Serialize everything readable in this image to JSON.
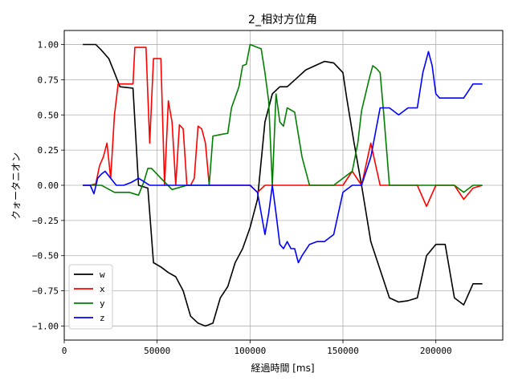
{
  "chart_data": {
    "type": "line",
    "title": "2_相対方位角",
    "xlabel": "経過時間 [ms]",
    "ylabel": "クォータニオン",
    "xlim": [
      0,
      236000
    ],
    "ylim": [
      -1.1,
      1.1
    ],
    "xticks": [
      0,
      50000,
      100000,
      150000,
      200000
    ],
    "xtick_labels": [
      "0",
      "50000",
      "100000",
      "150000",
      "200000"
    ],
    "yticks": [
      1.0,
      0.75,
      0.5,
      0.25,
      0.0,
      -0.25,
      -0.5,
      -0.75,
      -1.0
    ],
    "ytick_labels": [
      "1.00",
      "0.75",
      "0.50",
      "0.25",
      "0.00",
      "−0.25",
      "−0.50",
      "−0.75",
      "−1.00"
    ],
    "grid": true,
    "legend": {
      "position": "lower-left"
    },
    "series": [
      {
        "name": "w",
        "color": "#000000",
        "x": [
          10000,
          17000,
          20000,
          24000,
          27000,
          30000,
          37000,
          40000,
          45000,
          48000,
          52000,
          56000,
          60000,
          64000,
          68000,
          72000,
          76000,
          80000,
          84000,
          88000,
          92000,
          96000,
          100000,
          104000,
          108000,
          112000,
          116000,
          120000,
          125000,
          130000,
          135000,
          140000,
          145000,
          150000,
          152000,
          156000,
          160000,
          165000,
          170000,
          175000,
          180000,
          185000,
          190000,
          195000,
          200000,
          205000,
          210000,
          215000,
          220000,
          225000
        ],
        "y": [
          1.0,
          1.0,
          0.96,
          0.9,
          0.8,
          0.7,
          0.69,
          0.0,
          -0.02,
          -0.55,
          -0.58,
          -0.62,
          -0.65,
          -0.75,
          -0.93,
          -0.98,
          -1.0,
          -0.98,
          -0.8,
          -0.72,
          -0.55,
          -0.45,
          -0.3,
          -0.1,
          0.45,
          0.65,
          0.7,
          0.7,
          0.76,
          0.82,
          0.85,
          0.88,
          0.87,
          0.8,
          0.62,
          0.3,
          0.0,
          -0.4,
          -0.6,
          -0.8,
          -0.83,
          -0.82,
          -0.8,
          -0.5,
          -0.42,
          -0.42,
          -0.8,
          -0.85,
          -0.7,
          -0.7
        ]
      },
      {
        "name": "x",
        "color": "#ff0000",
        "x": [
          10000,
          14000,
          17000,
          19000,
          21000,
          23000,
          25000,
          27000,
          29000,
          31000,
          35000,
          37000,
          38000,
          40000,
          42000,
          44000,
          46000,
          48000,
          50000,
          52000,
          54000,
          56000,
          58000,
          60000,
          62000,
          64000,
          66000,
          68000,
          70000,
          72000,
          74000,
          76000,
          78000,
          80000,
          90000,
          100000,
          104000,
          108000,
          112000,
          120000,
          130000,
          140000,
          150000,
          155000,
          160000,
          165000,
          170000,
          180000,
          190000,
          195000,
          200000,
          210000,
          215000,
          220000,
          225000
        ],
        "y": [
          0.0,
          0.0,
          0.01,
          0.14,
          0.2,
          0.3,
          0.05,
          0.5,
          0.72,
          0.72,
          0.72,
          0.72,
          0.98,
          0.98,
          0.98,
          0.98,
          0.3,
          0.9,
          0.9,
          0.9,
          0.0,
          0.6,
          0.45,
          0.0,
          0.43,
          0.4,
          0.0,
          0.0,
          0.05,
          0.42,
          0.4,
          0.3,
          0.0,
          0.0,
          0.0,
          0.0,
          -0.05,
          0.0,
          0.0,
          0.0,
          0.0,
          0.0,
          0.0,
          0.1,
          0.0,
          0.3,
          0.0,
          0.0,
          0.0,
          -0.15,
          0.0,
          0.0,
          -0.1,
          -0.02,
          0.0
        ]
      },
      {
        "name": "y",
        "color": "#008000",
        "x": [
          10000,
          20000,
          27000,
          35000,
          40000,
          43000,
          45000,
          47000,
          52000,
          58000,
          66000,
          70000,
          76000,
          78000,
          80000,
          84000,
          88000,
          90000,
          94000,
          96000,
          98000,
          100000,
          102000,
          104000,
          106000,
          108000,
          110000,
          112000,
          114000,
          116000,
          118000,
          120000,
          124000,
          128000,
          132000,
          136000,
          140000,
          145000,
          150000,
          155000,
          158000,
          160000,
          164000,
          166000,
          168000,
          170000,
          172000,
          175000,
          180000,
          190000,
          195000,
          200000,
          205000,
          210000,
          215000,
          220000,
          225000
        ],
        "y": [
          0.0,
          0.0,
          -0.05,
          -0.05,
          -0.07,
          0.03,
          0.12,
          0.12,
          0.05,
          -0.03,
          0.0,
          0.0,
          0.0,
          0.0,
          0.35,
          0.36,
          0.37,
          0.55,
          0.7,
          0.85,
          0.86,
          1.0,
          0.99,
          0.98,
          0.97,
          0.8,
          0.6,
          0.0,
          0.65,
          0.45,
          0.42,
          0.55,
          0.52,
          0.2,
          0.0,
          0.0,
          0.0,
          0.0,
          0.05,
          0.1,
          0.3,
          0.53,
          0.75,
          0.85,
          0.83,
          0.8,
          0.5,
          0.0,
          0.0,
          0.0,
          0.0,
          0.0,
          0.0,
          0.0,
          -0.05,
          0.0,
          0.0
        ]
      },
      {
        "name": "z",
        "color": "#0000ff",
        "x": [
          10000,
          14000,
          16000,
          18000,
          20000,
          22000,
          25000,
          28000,
          32000,
          36000,
          40000,
          46000,
          50000,
          56000,
          62000,
          70000,
          76000,
          80000,
          88000,
          96000,
          100000,
          104000,
          108000,
          110000,
          112000,
          114000,
          116000,
          118000,
          120000,
          122000,
          124000,
          126000,
          128000,
          132000,
          136000,
          140000,
          145000,
          150000,
          155000,
          160000,
          165000,
          170000,
          175000,
          180000,
          185000,
          190000,
          193000,
          196000,
          198000,
          200000,
          202000,
          205000,
          210000,
          215000,
          220000,
          223000,
          225000
        ],
        "y": [
          0.0,
          0.0,
          -0.06,
          0.05,
          0.08,
          0.1,
          0.05,
          0.0,
          0.0,
          0.02,
          0.05,
          0.0,
          0.0,
          0.0,
          0.0,
          0.0,
          0.0,
          0.0,
          0.0,
          0.0,
          0.0,
          -0.05,
          -0.35,
          -0.2,
          0.0,
          -0.2,
          -0.42,
          -0.45,
          -0.4,
          -0.45,
          -0.45,
          -0.55,
          -0.5,
          -0.42,
          -0.4,
          -0.4,
          -0.35,
          -0.05,
          0.0,
          0.0,
          0.2,
          0.55,
          0.55,
          0.5,
          0.55,
          0.55,
          0.8,
          0.95,
          0.85,
          0.65,
          0.62,
          0.62,
          0.62,
          0.62,
          0.72,
          0.72,
          0.72
        ]
      }
    ]
  }
}
